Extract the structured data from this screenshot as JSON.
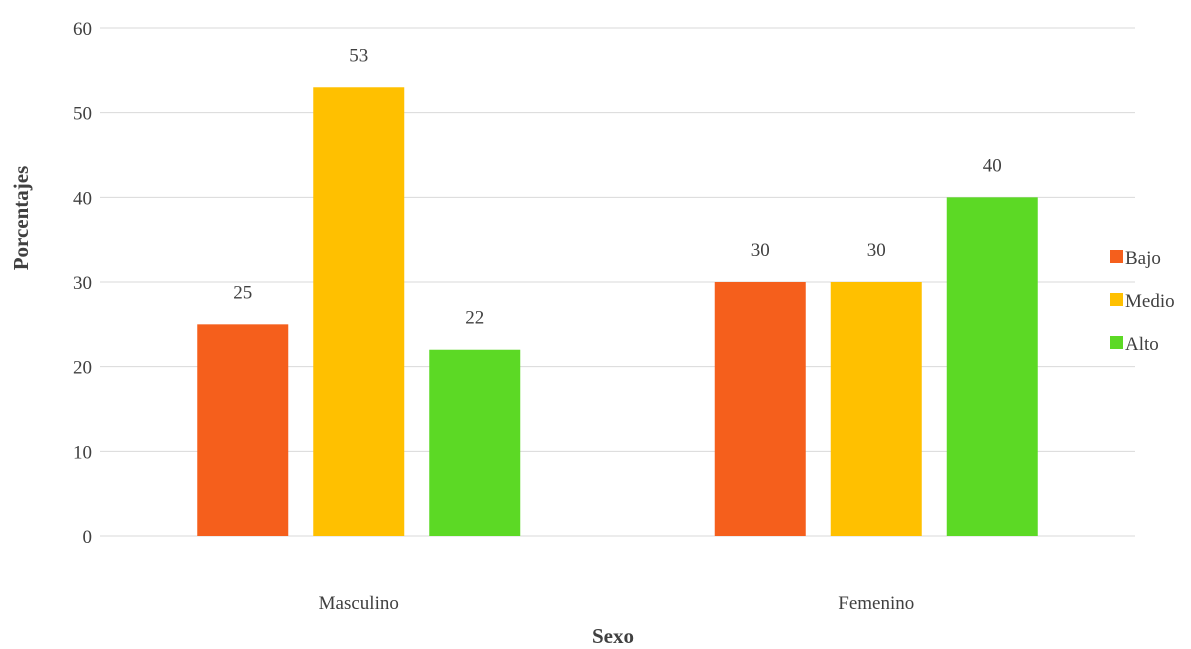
{
  "chart_data": {
    "type": "bar",
    "categories": [
      "Masculino",
      "Femenino"
    ],
    "series": [
      {
        "name": "Bajo",
        "values": [
          25,
          30
        ],
        "color": "#f55f1c"
      },
      {
        "name": "Medio",
        "values": [
          53,
          30
        ],
        "color": "#ffc000"
      },
      {
        "name": "Alto",
        "values": [
          22,
          40
        ],
        "color": "#5cd925"
      }
    ],
    "xlabel": "Sexo",
    "ylabel": "Porcentajes",
    "ylim": [
      0,
      60
    ],
    "yticks": [
      0,
      10,
      20,
      30,
      40,
      50,
      60
    ],
    "grid": true,
    "legend_position": "right"
  }
}
